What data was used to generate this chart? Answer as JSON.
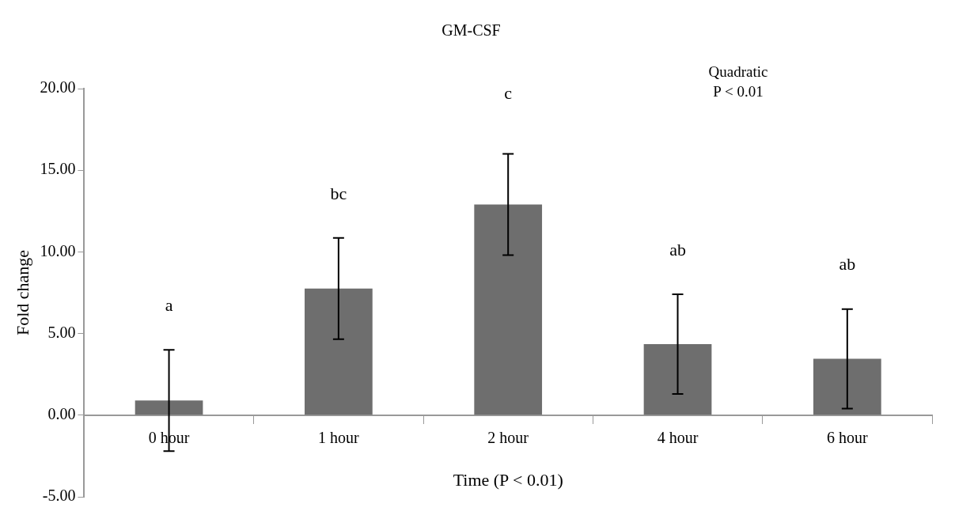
{
  "chart_data": {
    "type": "bar",
    "title": "GM-CSF",
    "xlabel": "Time (P < 0.01)",
    "ylabel": "Fold change",
    "categories": [
      "0 hour",
      "1 hour",
      "2 hour",
      "4 hour",
      "6 hour"
    ],
    "values": [
      0.9,
      7.75,
      12.9,
      4.35,
      3.45
    ],
    "errors": [
      3.1,
      3.1,
      3.1,
      3.05,
      3.05
    ],
    "color": "#6e6e6e",
    "ylim": [
      -5,
      20
    ],
    "yticks": [
      {
        "value": -5,
        "label": "-5.00"
      },
      {
        "value": 0,
        "label": "0.00"
      },
      {
        "value": 5,
        "label": "5.00"
      },
      {
        "value": 10,
        "label": "10.00"
      },
      {
        "value": 15,
        "label": "15.00"
      },
      {
        "value": 20,
        "label": "20.00"
      }
    ],
    "grid": false,
    "legend": false,
    "annotations": [
      "a",
      "bc",
      "c",
      "ab",
      "ab",
      "Quadratic",
      "P < 0.01"
    ]
  }
}
